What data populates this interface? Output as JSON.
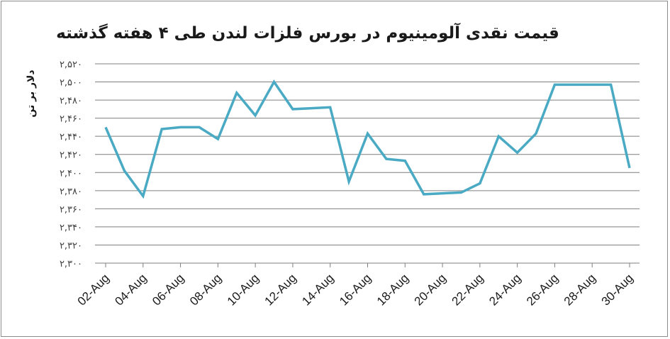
{
  "chart_data": {
    "type": "line",
    "title": "قیمت نقدی آلومینیوم در بورس فلزات لندن طی ۴ هفته گذشته",
    "ylabel": "دلار بر تن",
    "xlabel": "",
    "ylim": [
      2300,
      2520
    ],
    "yticks": [
      2300,
      2320,
      2340,
      2360,
      2380,
      2400,
      2420,
      2440,
      2460,
      2480,
      2500,
      2520
    ],
    "ytick_labels": [
      "۲,۳۰۰",
      "۲,۳۲۰",
      "۲,۳۴۰",
      "۲,۳۶۰",
      "۲,۳۸۰",
      "۲,۴۰۰",
      "۲,۴۲۰",
      "۲,۴۴۰",
      "۲,۴۶۰",
      "۲,۴۸۰",
      "۲,۵۰۰",
      "۲,۵۲۰"
    ],
    "grid": true,
    "legend": "none",
    "x_labels": [
      "02-Aug",
      "04-Aug",
      "06-Aug",
      "08-Aug",
      "10-Aug",
      "12-Aug",
      "14-Aug",
      "16-Aug",
      "18-Aug",
      "20-Aug",
      "22-Aug",
      "24-Aug",
      "26-Aug",
      "28-Aug",
      "30-Aug"
    ],
    "series": [
      {
        "color": "#4aaac4",
        "points": [
          {
            "x": "02-Aug",
            "y": 2450
          },
          {
            "x": "03-Aug",
            "y": 2402
          },
          {
            "x": "04-Aug",
            "y": 2374
          },
          {
            "x": "05-Aug",
            "y": 2448
          },
          {
            "x": "06-Aug",
            "y": 2450
          },
          {
            "x": "07-Aug",
            "y": 2450
          },
          {
            "x": "08-Aug",
            "y": 2437
          },
          {
            "x": "09-Aug",
            "y": 2488
          },
          {
            "x": "10-Aug",
            "y": 2463
          },
          {
            "x": "11-Aug",
            "y": 2500
          },
          {
            "x": "12-Aug",
            "y": 2470
          },
          {
            "x": "13-Aug",
            "y": 2471
          },
          {
            "x": "14-Aug",
            "y": 2472
          },
          {
            "x": "15-Aug",
            "y": 2390
          },
          {
            "x": "16-Aug",
            "y": 2443
          },
          {
            "x": "17-Aug",
            "y": 2415
          },
          {
            "x": "18-Aug",
            "y": 2413
          },
          {
            "x": "19-Aug",
            "y": 2376
          },
          {
            "x": "20-Aug",
            "y": 2377
          },
          {
            "x": "21-Aug",
            "y": 2378
          },
          {
            "x": "22-Aug",
            "y": 2388
          },
          {
            "x": "23-Aug",
            "y": 2440
          },
          {
            "x": "24-Aug",
            "y": 2422
          },
          {
            "x": "25-Aug",
            "y": 2443
          },
          {
            "x": "26-Aug",
            "y": 2497
          },
          {
            "x": "27-Aug",
            "y": 2497
          },
          {
            "x": "28-Aug",
            "y": 2497
          },
          {
            "x": "29-Aug",
            "y": 2497
          },
          {
            "x": "30-Aug",
            "y": 2405
          }
        ]
      }
    ]
  }
}
